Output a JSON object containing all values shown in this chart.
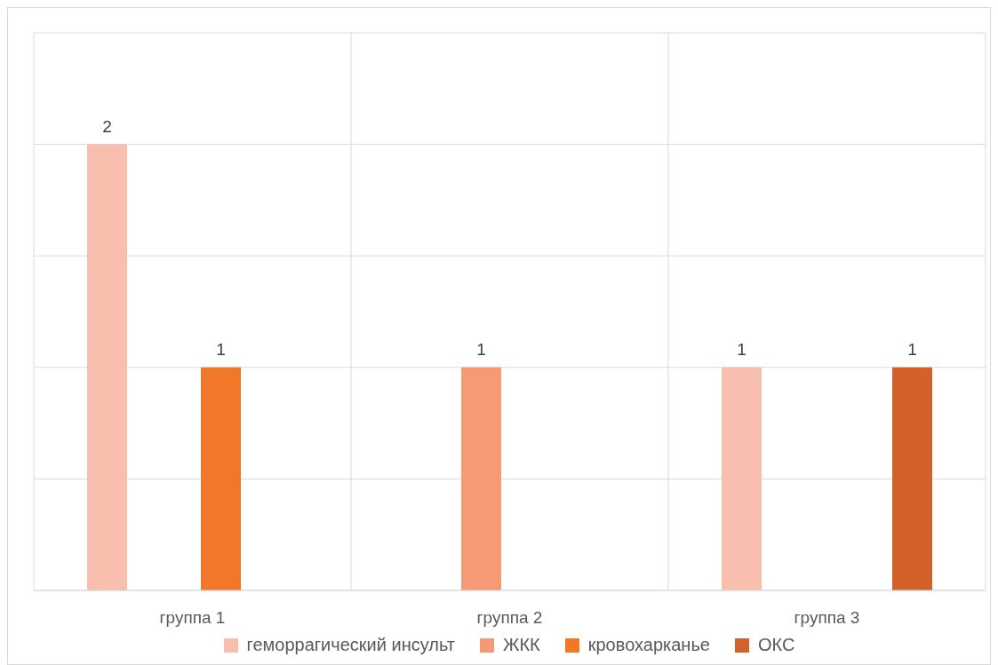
{
  "chart_data": {
    "type": "bar",
    "categories": [
      "группа 1",
      "группа 2",
      "группа 3"
    ],
    "series": [
      {
        "name": "геморрагический инсульт",
        "color": "#f8bfae",
        "values": [
          2,
          0,
          1
        ],
        "value_labels": [
          "2",
          null,
          "1"
        ]
      },
      {
        "name": "ЖКК",
        "color": "#f59a75",
        "values": [
          0,
          1,
          0
        ],
        "value_labels": [
          null,
          "1",
          null
        ]
      },
      {
        "name": "кровохарканье",
        "color": "#f07828",
        "values": [
          1,
          0,
          0
        ],
        "value_labels": [
          "1",
          null,
          null
        ]
      },
      {
        "name": "ОКС",
        "color": "#d4612a",
        "values": [
          0,
          0,
          1
        ],
        "value_labels": [
          null,
          null,
          "1"
        ]
      }
    ],
    "ylim": [
      0,
      2.5
    ],
    "yticks": [
      {
        "value": 0,
        "label": null
      },
      {
        "value": 0.5,
        "label": null
      },
      {
        "value": 1,
        "label": null
      },
      {
        "value": 1.5,
        "label": null
      },
      {
        "value": 2,
        "label": null
      },
      {
        "value": 2.5,
        "label": null
      }
    ],
    "tick_labels": "x",
    "grid": true,
    "legend": "bottom"
  }
}
